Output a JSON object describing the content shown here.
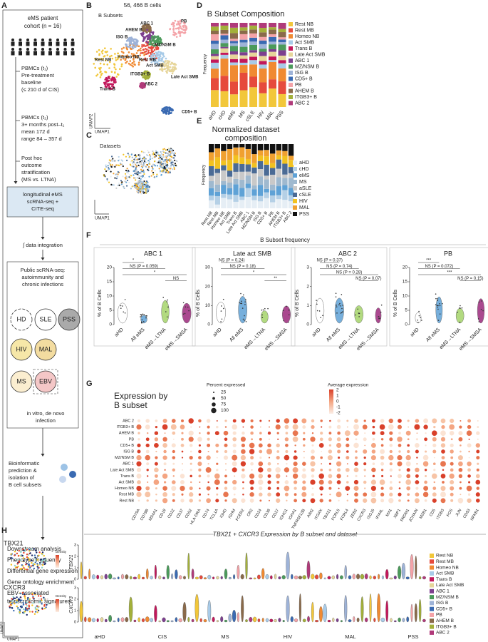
{
  "panel_a": {
    "letter": "A",
    "cohort": [
      "eMS patient",
      "cohort (n = 16)"
    ],
    "t1": [
      "PBMCs (t₁)",
      "Pre-treatment",
      "baseline",
      "(≤ 210 d of CIS)"
    ],
    "t2": [
      "PBMCs (t₂)",
      "3+ months post–t₁",
      "mean 172 d",
      "range 84 – 357 d"
    ],
    "stratification": [
      "Post hoc",
      "outcome",
      "stratification",
      "(MS vs. LTNA)"
    ],
    "sequencing": [
      "longitudinal eMS",
      "scRNA-seq +",
      "CITE-seq"
    ],
    "integration": "∫ data integration",
    "public": [
      "Public scRNA-seq:",
      "autoimmunity and",
      "chronic infections"
    ],
    "groups": [
      "HD",
      "SLE",
      "PSS",
      "HIV",
      "MAL",
      "MS",
      "EBV"
    ],
    "ebv_note": [
      "in vitro, de novo",
      "infection"
    ],
    "prediction": [
      "Bioinformatic",
      "prediction &",
      "isolation of",
      "B cell subsets"
    ],
    "analyses": [
      "Downstream analysis",
      "Phenotype frequency",
      "Differential gene expression",
      "Gene ontology enrichment",
      "EBV–associated",
      "transcriptomic signatures"
    ]
  },
  "subsets": [
    {
      "name": "Rest NB",
      "color": "#f2c73a"
    },
    {
      "name": "Rest MB",
      "color": "#e64a3c"
    },
    {
      "name": "Homeo NB",
      "color": "#f08a32"
    },
    {
      "name": "Act SMB",
      "color": "#a8cbe8"
    },
    {
      "name": "Trans B",
      "color": "#c2185b"
    },
    {
      "name": "Late Act SMB",
      "color": "#e6d59a"
    },
    {
      "name": "ABC 1",
      "color": "#7d3f8f"
    },
    {
      "name": "MZ/NSM B",
      "color": "#4b9a5b"
    },
    {
      "name": "ISG B",
      "color": "#9eb3d8"
    },
    {
      "name": "CD5+ B",
      "color": "#3a6ab2"
    },
    {
      "name": "PB",
      "color": "#f4a3a8"
    },
    {
      "name": "AHEM B",
      "color": "#8a6a4a"
    },
    {
      "name": "ITGB3+ B",
      "color": "#a3b03a"
    },
    {
      "name": "ABC 2",
      "color": "#b03a7a"
    }
  ],
  "panel_b": {
    "letter": "B",
    "cell_count": "56, 466 B cells",
    "title": "B Subsets",
    "y_axis": "UMAP2",
    "x_axis": "UMAP1"
  },
  "panel_c": {
    "letter": "C",
    "title": "Datasets",
    "x_axis": "UMAP1"
  },
  "panel_d": {
    "letter": "D",
    "title": "B Subset Composition",
    "y_axis": "Frequency",
    "categories": [
      "aHD",
      "cHD",
      "eMS",
      "MS",
      "cSLE",
      "HIV",
      "MAL",
      "PSS"
    ]
  },
  "panel_e": {
    "letter": "E",
    "title": [
      "Normalized dataset",
      "composition"
    ],
    "y_axis": "Frequency",
    "datasets": [
      {
        "name": "aHD",
        "color": "#e6eef5"
      },
      {
        "name": "cHD",
        "color": "#b5d0e6"
      },
      {
        "name": "eMS",
        "color": "#5fa2d6"
      },
      {
        "name": "MS",
        "color": "#9fb9cf"
      },
      {
        "name": "aSLE",
        "color": "#c9c9c9"
      },
      {
        "name": "cSLE",
        "color": "#4b6b95"
      },
      {
        "name": "HIV",
        "color": "#f2c21f"
      },
      {
        "name": "MAL",
        "color": "#f0a030"
      },
      {
        "name": "PSS",
        "color": "#111111"
      }
    ]
  },
  "panel_f": {
    "letter": "F",
    "title": "B Subset frequency",
    "y_axis": "% of B Cells",
    "groups": [
      "aHD",
      "All eMS",
      "eMS→LTNA",
      "eMS→SMSA"
    ],
    "panels": [
      {
        "title": "ABC 1",
        "yticks": [
          0,
          5,
          10,
          15,
          20
        ],
        "annotations": [
          "*",
          "NS (P = 0.059)",
          "*",
          "NS"
        ]
      },
      {
        "title": "Late act SMB",
        "yticks": [
          0,
          10,
          20,
          30
        ],
        "annotations": [
          "NS (P = 0.24)",
          "NS (P = 0.18)",
          "*",
          "**"
        ]
      },
      {
        "title": "ABC 2",
        "yticks": [
          0,
          1,
          2,
          3
        ],
        "annotations": [
          "NS (P = 0.37)",
          "NS (P = 0.74)",
          "NS (P = 0.28)",
          "NS (P = 0.07)"
        ]
      },
      {
        "title": "PB",
        "yticks": [
          0,
          5,
          10,
          15,
          20
        ],
        "annotations": [
          "***",
          "NS (P = 0.072)",
          "***",
          "NS (P = 0.15)"
        ]
      }
    ]
  },
  "panel_g": {
    "letter": "G",
    "title": [
      "Expression by",
      "B subset"
    ],
    "size_title": "Percent expressed",
    "size_ticks": [
      25,
      50,
      75,
      100
    ],
    "color_title": "Average expression",
    "color_ticks": [
      2,
      1,
      0,
      -1,
      -2
    ],
    "rows": [
      "ABC 2",
      "ITGB3+ B",
      "AHEM B",
      "PB",
      "CD5+ B",
      "ISG B",
      "MZ/NSM B",
      "ABC 1",
      "Late Act SMB",
      "Trans B",
      "Act SMB",
      "Homeo NB",
      "Rest MB",
      "Rest NB"
    ],
    "genes": [
      "CD79A",
      "CD79B",
      "MS4A1",
      "CD19",
      "CD22",
      "CD37",
      "CD52",
      "HLA-DRA",
      "CD74",
      "TCL1A",
      "IGHD",
      "IGHM",
      "FCER2",
      "CR2",
      "CD24",
      "CD38",
      "CD27",
      "IGHG1",
      "IGHA1",
      "TNFRSF13B",
      "AIM2",
      "ITGAX",
      "TBX21",
      "FCRL5",
      "FCRL4",
      "ZEB2",
      "CXCR3",
      "ISG15",
      "IFI44L",
      "MX1",
      "XBP1",
      "PRDM1",
      "JCHAIN",
      "MZB1",
      "CD5",
      "ITGB3",
      "FOS",
      "JUN",
      "CD83",
      "NFKB1"
    ]
  },
  "panel_h": {
    "letter": "H",
    "genes": [
      "TBX21",
      "CXCR3"
    ],
    "density": "Density",
    "y_axis": "UMAP2",
    "x_axis": "UMAP1",
    "title": "TBX21 + CXCR3 Expression by B subset and dataset",
    "yticks": [
      0,
      1,
      2,
      3
    ],
    "datasets": [
      "aHD",
      "CIS",
      "MS",
      "HIV",
      "MAL",
      "PSS"
    ]
  }
}
